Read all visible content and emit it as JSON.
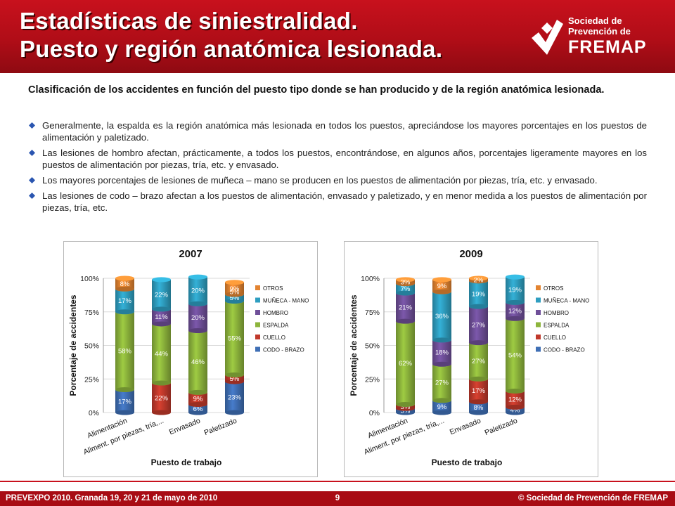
{
  "header": {
    "title_line1": "Estadísticas de siniestralidad.",
    "title_line2": "Puesto y región anatómica lesionada."
  },
  "logo": {
    "line1": "Sociedad de",
    "line2": "Prevención de",
    "brand": "FREMAP",
    "icon": "fremap-check-icon"
  },
  "intro": "Clasificación de los accidentes en función del puesto tipo donde se han producido y de la región anatómica lesionada.",
  "bullets": [
    "Generalmente, la espalda es la región anatómica más lesionada en todos los puestos, apreciándose los mayores porcentajes en los puestos de alimentación y paletizado.",
    "Las lesiones de hombro afectan, prácticamente, a todos los puestos, encontrándose, en algunos años, porcentajes ligeramente mayores en los puestos de alimentación por piezas, tría, etc. y envasado.",
    "Los mayores porcentajes de lesiones de muñeca – mano se producen en los puestos de alimentación por piezas, tría, etc. y envasado.",
    "Las lesiones de codo – brazo afectan a los puestos de alimentación, envasado y paletizado, y en menor medida a los puestos de alimentación por piezas, tría, etc."
  ],
  "colors": {
    "header": "#c8111d",
    "codo_brazo": "#3f6fb5",
    "cuello": "#c0392b",
    "espalda": "#8db53c",
    "hombro": "#6f4f99",
    "muneca_mano": "#2e9ec0",
    "otros": "#e38431"
  },
  "chart_data": [
    {
      "type": "bar",
      "stacked": true,
      "title": "2007",
      "xlabel": "Puesto de trabajo",
      "ylabel": "Porcentaje de accidentes",
      "ylim": [
        0,
        100
      ],
      "yticks": [
        "0%",
        "25%",
        "50%",
        "75%",
        "100%"
      ],
      "categories": [
        "Alimentación",
        "Aliment. por piezas, tría,...",
        "Envasado",
        "Paletizado"
      ],
      "legend_position": "right",
      "series": [
        {
          "name": "CODO - BRAZO",
          "values": [
            17,
            null,
            6,
            23
          ],
          "labels": [
            "17%",
            "",
            "6%",
            "23%"
          ]
        },
        {
          "name": "CUELLO",
          "values": [
            null,
            22,
            9,
            5
          ],
          "labels": [
            "",
            "22%",
            "9%",
            "5%"
          ]
        },
        {
          "name": "ESPALDA",
          "values": [
            58,
            44,
            46,
            55
          ],
          "labels": [
            "58%",
            "44%",
            "46%",
            "55%"
          ]
        },
        {
          "name": "HOMBRO",
          "values": [
            null,
            11,
            20,
            null
          ],
          "labels": [
            "",
            "11%",
            "20%",
            ""
          ]
        },
        {
          "name": "MUÑECA - MANO",
          "values": [
            17,
            22,
            20,
            5
          ],
          "labels": [
            "17%",
            "22%",
            "20%",
            "5%"
          ]
        },
        {
          "name": "OTROS",
          "values": [
            8,
            null,
            null,
            9
          ],
          "labels": [
            "8%",
            "",
            "",
            "9%"
          ]
        }
      ],
      "extra_labels": [
        {
          "text": "5%",
          "category": 3,
          "value_at": 90
        }
      ]
    },
    {
      "type": "bar",
      "stacked": true,
      "title": "2009",
      "xlabel": "Puesto de trabajo",
      "ylabel": "Porcentaje de accidentes",
      "ylim": [
        0,
        100
      ],
      "yticks": [
        "0%",
        "25%",
        "50%",
        "75%",
        "100%"
      ],
      "categories": [
        "Alimentación",
        "Aliment. por piezas, tría,...",
        "Envasado",
        "Paletizado"
      ],
      "legend_position": "right",
      "series": [
        {
          "name": "CODO - BRAZO",
          "values": [
            3,
            9,
            8,
            4
          ],
          "labels": [
            "3%",
            "9%",
            "8%",
            "4%"
          ]
        },
        {
          "name": "CUELLO",
          "values": [
            3,
            null,
            17,
            12
          ],
          "labels": [
            "3%",
            "",
            "17%",
            "12%"
          ]
        },
        {
          "name": "ESPALDA",
          "values": [
            62,
            27,
            27,
            54
          ],
          "labels": [
            "62%",
            "27%",
            "27%",
            "54%"
          ]
        },
        {
          "name": "HOMBRO",
          "values": [
            21,
            18,
            27,
            12
          ],
          "labels": [
            "21%",
            "18%",
            "27%",
            "12%"
          ]
        },
        {
          "name": "MUÑECA - MANO",
          "values": [
            7,
            36,
            19,
            19
          ],
          "labels": [
            "7%",
            "36%",
            "19%",
            "19%"
          ]
        },
        {
          "name": "OTROS",
          "values": [
            3,
            9,
            2,
            null
          ],
          "labels": [
            "3%",
            "9%",
            "2%",
            ""
          ]
        }
      ]
    }
  ],
  "footer": {
    "left": "PREVEXPO 2010. Granada 19, 20 y 21 de mayo de 2010",
    "page": "9",
    "right": "© Sociedad de Prevención de FREMAP"
  }
}
